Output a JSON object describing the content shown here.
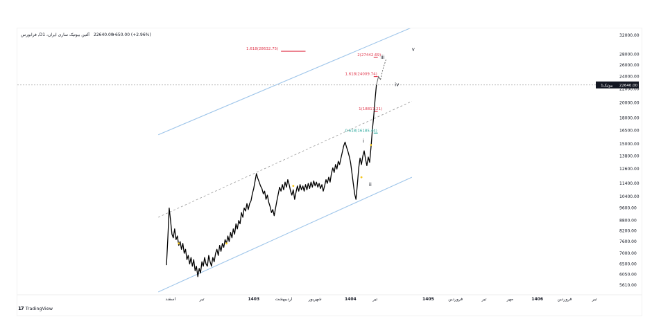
{
  "header": {
    "symbol": "فرابورس ,Dآلتین بیوتیک ساری ایران، 1",
    "price": "22640.00",
    "change": "+650.00 (+2.96%)"
  },
  "price_badge": {
    "value": "22640.00",
    "label": "بیوتیک1",
    "color": "#131722"
  },
  "brand": {
    "logo": "17",
    "name": "TradingView"
  },
  "colors": {
    "price_line": "#000000",
    "channel": "#9ec5ea",
    "fib_red": "#e0364b",
    "fib_green": "#26a69a",
    "marker": "#f5c518",
    "dashed": "#9e9e9e"
  },
  "chart_data": {
    "type": "line",
    "y_axis": {
      "scale": "log",
      "ticks": [
        "32000.00",
        "28000.00",
        "26000.00",
        "24000.00",
        "22000.00",
        "20000.00",
        "18000.00",
        "16500.00",
        "15000.00",
        "13800.00",
        "12600.00",
        "11400.00",
        "10400.00",
        "9600.00",
        "8800.00",
        "8200.00",
        "7600.00",
        "7000.00",
        "6500.00",
        "6050.00",
        "5610.00"
      ],
      "tick_values": [
        32000,
        28000,
        26000,
        24000,
        22000,
        20000,
        18000,
        16500,
        15000,
        13800,
        12600,
        11400,
        10400,
        9600,
        8800,
        8200,
        7600,
        7000,
        6500,
        6050,
        5610
      ]
    },
    "x_axis": {
      "ticks": [
        {
          "label": "اسفند",
          "i": 6,
          "bold": false
        },
        {
          "label": "تیر",
          "i": 52,
          "bold": false
        },
        {
          "label": "1403",
          "i": 128,
          "bold": true
        },
        {
          "label": "اردیبهشت",
          "i": 172,
          "bold": false
        },
        {
          "label": "شهریور",
          "i": 218,
          "bold": false
        },
        {
          "label": "1404",
          "i": 270,
          "bold": true
        },
        {
          "label": "تیر",
          "i": 306,
          "bold": false
        },
        {
          "label": "1405",
          "i": 384,
          "bold": true
        },
        {
          "label": "فروردین",
          "i": 424,
          "bold": false
        },
        {
          "label": "تیر",
          "i": 466,
          "bold": false
        },
        {
          "label": "مهر",
          "i": 504,
          "bold": false
        },
        {
          "label": "1406",
          "i": 544,
          "bold": true
        },
        {
          "label": "فروردین",
          "i": 584,
          "bold": false
        },
        {
          "label": "تیر",
          "i": 628,
          "bold": false
        }
      ],
      "range": [
        0,
        640
      ]
    },
    "series": [
      {
        "points": [
          [
            0,
            6450
          ],
          [
            2,
            7800
          ],
          [
            4,
            9600
          ],
          [
            6,
            8800
          ],
          [
            8,
            8000
          ],
          [
            10,
            7800
          ],
          [
            12,
            8300
          ],
          [
            14,
            7700
          ],
          [
            16,
            7900
          ],
          [
            18,
            7400
          ],
          [
            20,
            7600
          ],
          [
            22,
            7200
          ],
          [
            24,
            7500
          ],
          [
            26,
            7000
          ],
          [
            28,
            7200
          ],
          [
            30,
            6700
          ],
          [
            32,
            6900
          ],
          [
            34,
            6500
          ],
          [
            36,
            6800
          ],
          [
            38,
            6400
          ],
          [
            40,
            6700
          ],
          [
            42,
            6200
          ],
          [
            44,
            6400
          ],
          [
            46,
            5950
          ],
          [
            48,
            6300
          ],
          [
            50,
            6100
          ],
          [
            52,
            6600
          ],
          [
            54,
            6400
          ],
          [
            56,
            6800
          ],
          [
            58,
            6500
          ],
          [
            60,
            6400
          ],
          [
            62,
            6900
          ],
          [
            64,
            6600
          ],
          [
            66,
            6400
          ],
          [
            68,
            6800
          ],
          [
            70,
            6600
          ],
          [
            72,
            7000
          ],
          [
            74,
            7200
          ],
          [
            76,
            6900
          ],
          [
            78,
            7400
          ],
          [
            80,
            7100
          ],
          [
            82,
            7500
          ],
          [
            84,
            7300
          ],
          [
            86,
            7700
          ],
          [
            88,
            7500
          ],
          [
            90,
            7900
          ],
          [
            92,
            7600
          ],
          [
            94,
            8100
          ],
          [
            96,
            7800
          ],
          [
            98,
            8300
          ],
          [
            100,
            8000
          ],
          [
            102,
            8600
          ],
          [
            104,
            8300
          ],
          [
            106,
            8800
          ],
          [
            108,
            8600
          ],
          [
            110,
            9300
          ],
          [
            112,
            9000
          ],
          [
            114,
            9600
          ],
          [
            116,
            9400
          ],
          [
            118,
            9900
          ],
          [
            120,
            9500
          ],
          [
            122,
            9900
          ],
          [
            124,
            10100
          ],
          [
            126,
            10600
          ],
          [
            128,
            11000
          ],
          [
            130,
            11600
          ],
          [
            132,
            12200
          ],
          [
            134,
            11800
          ],
          [
            136,
            11500
          ],
          [
            138,
            11200
          ],
          [
            140,
            11000
          ],
          [
            142,
            10600
          ],
          [
            144,
            10800
          ],
          [
            146,
            10200
          ],
          [
            148,
            10500
          ],
          [
            150,
            10000
          ],
          [
            152,
            9700
          ],
          [
            154,
            9300
          ],
          [
            156,
            9500
          ],
          [
            158,
            9100
          ],
          [
            160,
            9600
          ],
          [
            162,
            10100
          ],
          [
            164,
            10600
          ],
          [
            166,
            11100
          ],
          [
            168,
            10800
          ],
          [
            170,
            11300
          ],
          [
            172,
            10900
          ],
          [
            174,
            11500
          ],
          [
            176,
            11100
          ],
          [
            178,
            11700
          ],
          [
            180,
            11300
          ],
          [
            182,
            10800
          ],
          [
            184,
            10500
          ],
          [
            186,
            10900
          ],
          [
            188,
            10200
          ],
          [
            190,
            10700
          ],
          [
            192,
            11200
          ],
          [
            194,
            10800
          ],
          [
            196,
            11300
          ],
          [
            198,
            10900
          ],
          [
            200,
            11200
          ],
          [
            202,
            10800
          ],
          [
            204,
            11300
          ],
          [
            206,
            10900
          ],
          [
            208,
            11400
          ],
          [
            210,
            11000
          ],
          [
            212,
            11500
          ],
          [
            214,
            11100
          ],
          [
            216,
            11600
          ],
          [
            218,
            11200
          ],
          [
            220,
            11500
          ],
          [
            222,
            11100
          ],
          [
            224,
            11400
          ],
          [
            226,
            11000
          ],
          [
            228,
            11300
          ],
          [
            230,
            10800
          ],
          [
            232,
            11200
          ],
          [
            234,
            11700
          ],
          [
            236,
            11400
          ],
          [
            238,
            11900
          ],
          [
            240,
            11500
          ],
          [
            242,
            12200
          ],
          [
            244,
            12700
          ],
          [
            246,
            12300
          ],
          [
            248,
            13000
          ],
          [
            250,
            12600
          ],
          [
            252,
            13300
          ],
          [
            254,
            13000
          ],
          [
            256,
            13600
          ],
          [
            258,
            14200
          ],
          [
            260,
            14800
          ],
          [
            262,
            15200
          ],
          [
            264,
            14700
          ],
          [
            266,
            14300
          ],
          [
            268,
            13800
          ],
          [
            270,
            13200
          ],
          [
            272,
            12300
          ],
          [
            274,
            11400
          ],
          [
            276,
            10600
          ],
          [
            278,
            10200
          ],
          [
            280,
            11300
          ],
          [
            282,
            12700
          ],
          [
            284,
            13600
          ],
          [
            286,
            13000
          ],
          [
            288,
            13800
          ],
          [
            290,
            14300
          ],
          [
            292,
            13500
          ],
          [
            294,
            12900
          ],
          [
            296,
            13700
          ],
          [
            298,
            13200
          ],
          [
            300,
            14600
          ],
          [
            302,
            16500
          ],
          [
            304,
            18200
          ],
          [
            306,
            20400
          ],
          [
            308,
            22640
          ]
        ]
      }
    ],
    "projection_points": [
      [
        308,
        22640
      ],
      [
        311,
        24000
      ],
      [
        314,
        23500
      ],
      [
        318,
        25500
      ],
      [
        322,
        27000
      ]
    ],
    "projection_cut_at": 2,
    "channel_lines": [
      {
        "from": [
          -12,
          5350
        ],
        "to": [
          360,
          11900
        ],
        "style": "solid"
      },
      {
        "from": [
          -12,
          16000
        ],
        "to": [
          360,
          33800
        ],
        "style": "solid"
      },
      {
        "from": [
          -12,
          9000
        ],
        "to": [
          360,
          20200
        ],
        "style": "dashed"
      }
    ],
    "fib_levels": [
      {
        "label": "1.618(28632.75)",
        "value": 28632.75,
        "i0": 168,
        "i1": 204,
        "label_i": 117,
        "color": "red"
      },
      {
        "label": "2(27442.69)",
        "value": 27442.69,
        "i0": 304,
        "i1": 310,
        "label_i": 280,
        "color": "red"
      },
      {
        "label": "1.618(24009.74)",
        "value": 24009.74,
        "i0": 304,
        "i1": 310,
        "label_i": 262,
        "color": "red"
      },
      {
        "label": "1(18817.21)",
        "value": 18817.21,
        "i0": 304,
        "i1": 310,
        "label_i": 282,
        "color": "red"
      },
      {
        "label": "0.618(16185.44)",
        "value": 16185.44,
        "i0": 304,
        "i1": 310,
        "label_i": 262,
        "color": "green"
      }
    ],
    "wave_labels": [
      {
        "text": "i",
        "i": 289,
        "value": 15300
      },
      {
        "text": "ii",
        "i": 299,
        "value": 11300
      },
      {
        "text": "iii",
        "i": 317,
        "value": 27400
      },
      {
        "text": "iv",
        "i": 338,
        "value": 22640
      },
      {
        "text": "v",
        "i": 362,
        "value": 29000
      }
    ],
    "markers": [
      [
        18,
        7500
      ],
      [
        88,
        7500
      ],
      [
        186,
        11200
      ],
      [
        286,
        11900
      ],
      [
        300,
        14900
      ]
    ]
  }
}
